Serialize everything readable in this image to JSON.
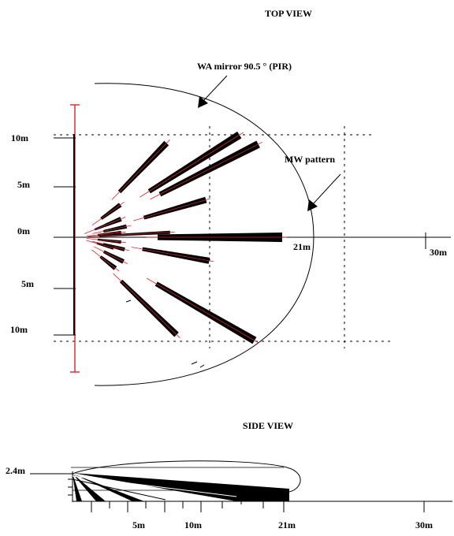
{
  "top_view": {
    "title": "TOP VIEW",
    "pir_label": "WA mirror 90.5 ° (PIR)",
    "mw_label": "MW  pattern",
    "y_labels": [
      "10m",
      "5m",
      "0m",
      "5m",
      "10m"
    ],
    "range_21": "21m",
    "range_30": "30m"
  },
  "side_view": {
    "title": "SIDE VIEW",
    "height_label": "2.4m",
    "x_labels": [
      "5m",
      "10m",
      "21m",
      "30m"
    ]
  },
  "colors": {
    "line": "#000000",
    "accent": "#e0202a"
  }
}
